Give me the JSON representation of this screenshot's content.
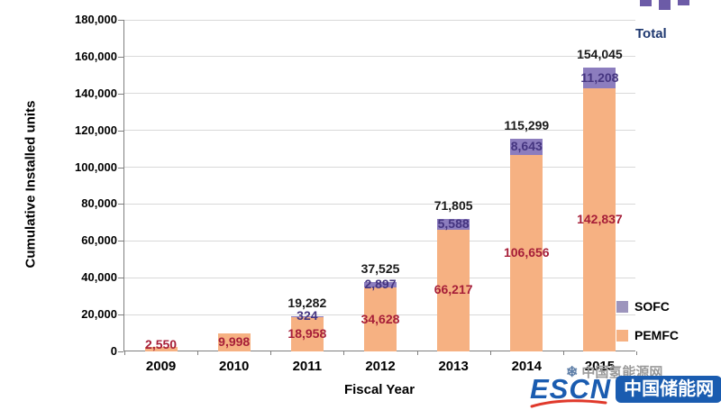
{
  "chart": {
    "ylabel": "Cumulative Installed units",
    "xlabel": "Fiscal Year",
    "total_caption": "Total"
  },
  "legend": [
    {
      "name": "SOFC",
      "color": "#9D95BD"
    },
    {
      "name": "PEMFC",
      "color": "#F6B182"
    }
  ],
  "watermarks": {
    "hydrogen": "中国氢能源网",
    "escn_text": "ESCN",
    "escn_badge": "中国储能网"
  },
  "chart_data": {
    "type": "bar",
    "stacked": true,
    "title": "",
    "xlabel": "Fiscal Year",
    "ylabel": "Cumulative Installed units",
    "ylim": [
      0,
      180000
    ],
    "ytick_step": 20000,
    "grid": true,
    "legend_position": "right",
    "categories": [
      "2009",
      "2010",
      "2011",
      "2012",
      "2013",
      "2014",
      "2015"
    ],
    "series": [
      {
        "name": "PEMFC",
        "color": "#F6B182",
        "values": [
          2550,
          9998,
          18958,
          34628,
          66217,
          106656,
          142837
        ]
      },
      {
        "name": "SOFC",
        "color": "#8C7DBE",
        "values": [
          0,
          0,
          324,
          2897,
          5588,
          8643,
          11208
        ]
      }
    ],
    "totals": [
      2550,
      9998,
      19282,
      37525,
      71805,
      115299,
      154045
    ],
    "labels": {
      "total": [
        "",
        "",
        "19,282",
        "37,525",
        "71,805",
        "115,299",
        "154,045"
      ],
      "sofc": [
        "",
        "",
        "324",
        "2,897",
        "5,588",
        "8,643",
        "11,208"
      ],
      "pemfc": [
        "2,550",
        "9,998",
        "18,958",
        "34,628",
        "66,217",
        "106,656",
        "142,837"
      ]
    },
    "label_colors": {
      "total": "#1A1A1A",
      "sofc": "#453580",
      "pemfc": "#A61E38"
    }
  }
}
